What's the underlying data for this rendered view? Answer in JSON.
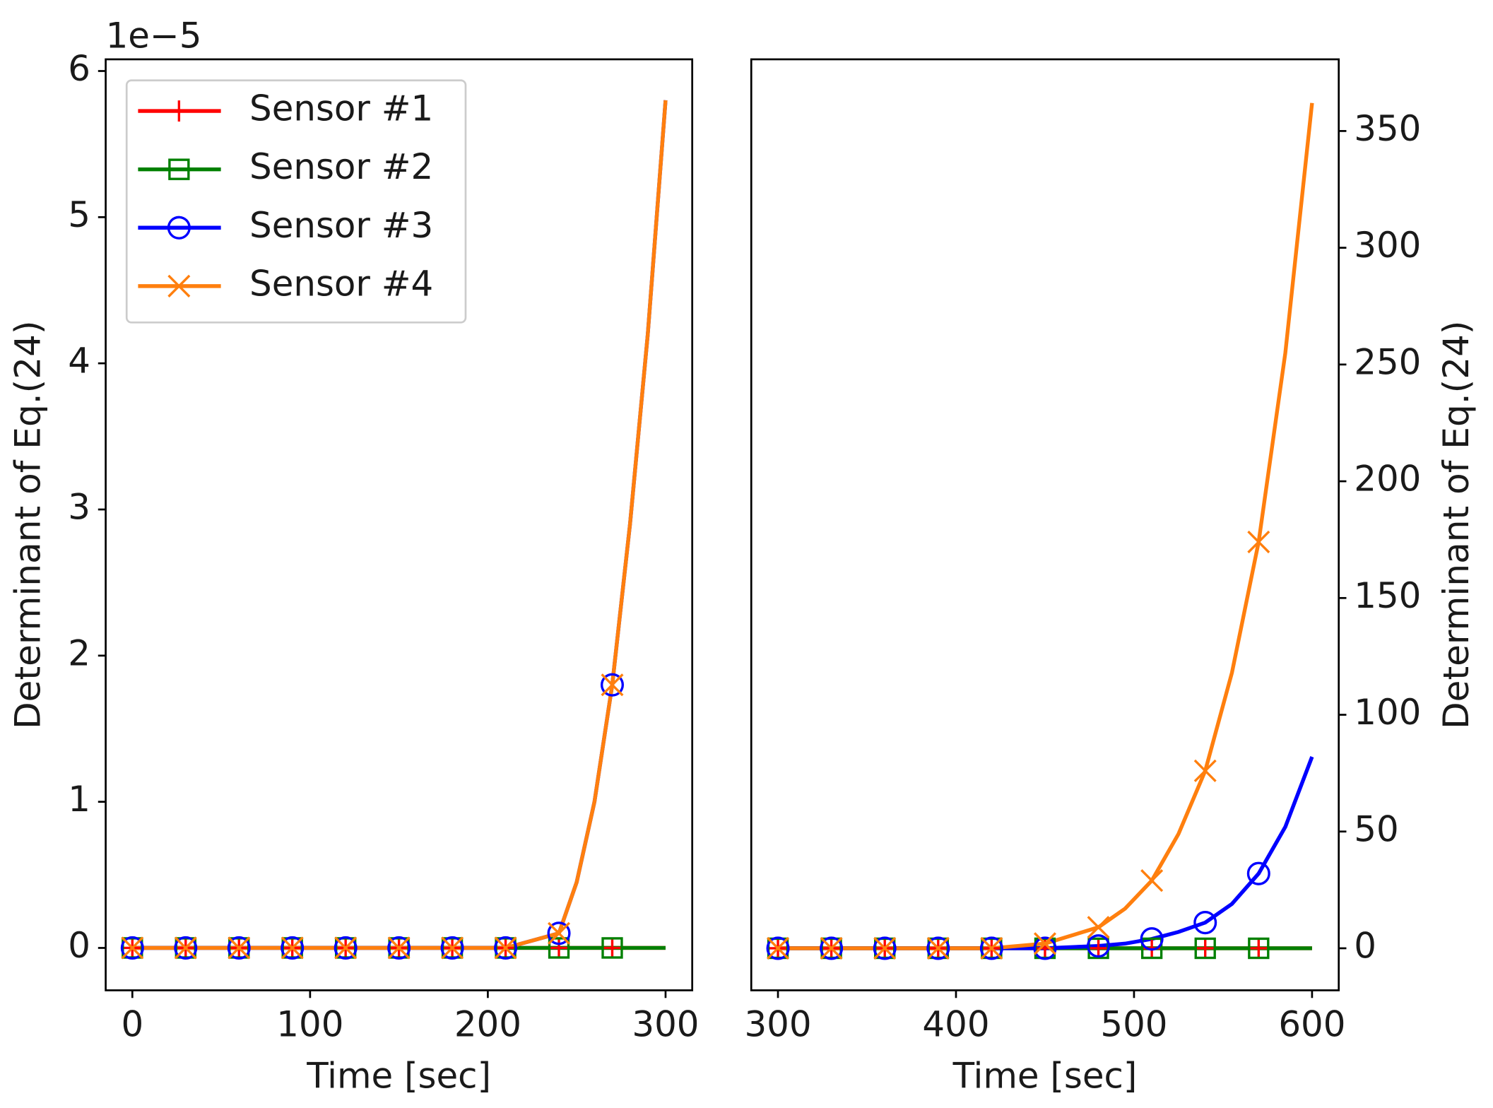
{
  "chart_data": [
    {
      "type": "line",
      "x": [
        0,
        30,
        60,
        90,
        120,
        150,
        180,
        210,
        240,
        250,
        260,
        270,
        280,
        290,
        300
      ],
      "series": [
        {
          "name": "Sensor #1",
          "color": "#ff0000",
          "marker": "+",
          "values": [
            0,
            0,
            0,
            0,
            0,
            0,
            0,
            0,
            0,
            0,
            0,
            0,
            0,
            0,
            0
          ]
        },
        {
          "name": "Sensor #2",
          "color": "#008000",
          "marker": "s",
          "values": [
            0,
            0,
            0,
            0,
            0,
            0,
            0,
            0,
            0,
            0,
            0,
            0,
            0,
            0,
            0
          ]
        },
        {
          "name": "Sensor #3",
          "color": "#0000ff",
          "marker": "o",
          "values": [
            0,
            0,
            0,
            0,
            0,
            0,
            0,
            0,
            0.1,
            0.45,
            1.0,
            1.8,
            2.9,
            4.2,
            5.8
          ]
        },
        {
          "name": "Sensor #4",
          "color": "#ff7f0e",
          "marker": "x",
          "values": [
            0,
            0,
            0,
            0,
            0,
            0,
            0,
            0,
            0.1,
            0.45,
            1.0,
            1.8,
            2.9,
            4.2,
            5.8
          ]
        }
      ],
      "markevery": 30,
      "xlim": [
        -15,
        315
      ],
      "xticks": [
        0,
        100,
        200,
        300
      ],
      "ylim": [
        -0.29,
        6.08
      ],
      "yticks": [
        0,
        1,
        2,
        3,
        4,
        5,
        6
      ],
      "offset_text": "1e−5",
      "xlabel": "Time [sec]",
      "ylabel": "Determinant of Eq.(24)",
      "legend": "upper left"
    },
    {
      "type": "line",
      "x": [
        300,
        330,
        360,
        390,
        420,
        450,
        480,
        495,
        510,
        525,
        540,
        555,
        570,
        585,
        600
      ],
      "series": [
        {
          "color": "#ff0000",
          "marker": "+",
          "axis": "y2",
          "values": [
            0,
            0,
            0,
            0,
            0,
            0,
            0,
            0,
            0,
            0,
            0,
            0,
            0,
            0,
            0
          ]
        },
        {
          "color": "#008000",
          "marker": "s",
          "axis": "y2",
          "values": [
            0,
            0,
            0,
            0,
            0,
            0,
            0,
            0,
            0,
            0,
            0,
            0,
            0,
            0,
            0
          ]
        },
        {
          "color": "#0000ff",
          "marker": "o",
          "axis": "y2",
          "values": [
            0,
            0,
            0,
            0,
            0,
            0,
            1,
            2,
            4,
            7,
            11,
            19,
            32,
            52,
            82
          ]
        },
        {
          "color": "#ff7f0e",
          "marker": "x",
          "axis": "y2",
          "values": [
            0,
            0,
            0,
            0,
            0,
            2,
            9,
            17,
            29,
            49,
            76,
            118,
            174,
            255,
            362
          ]
        }
      ],
      "markevery": 30,
      "xlim": [
        285,
        615
      ],
      "xticks": [
        300,
        400,
        500,
        600
      ],
      "y2lim": [
        -18,
        380.7
      ],
      "y2ticks": [
        0,
        50,
        100,
        150,
        200,
        250,
        300,
        350
      ],
      "xlabel": "Time [sec]",
      "ylabel": "Determinant of Eq.(24)"
    }
  ]
}
